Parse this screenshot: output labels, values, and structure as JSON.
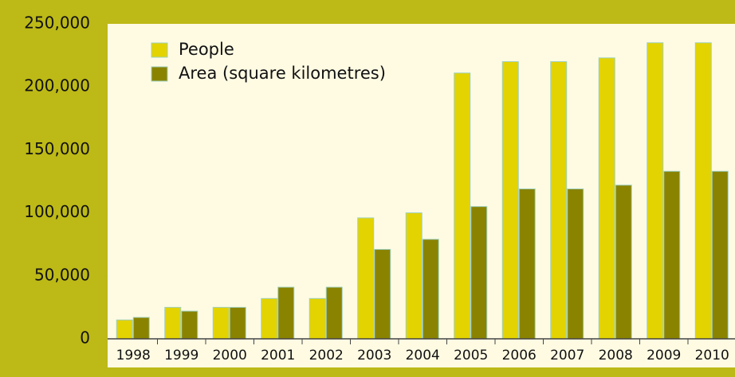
{
  "chart_data": {
    "type": "bar",
    "categories": [
      "1998",
      "1999",
      "2000",
      "2001",
      "2002",
      "2003",
      "2004",
      "2005",
      "2006",
      "2007",
      "2008",
      "2009",
      "2010"
    ],
    "series": [
      {
        "name": "People",
        "color": "#e3d300",
        "values": [
          15000,
          25000,
          25000,
          32000,
          32000,
          96000,
          100000,
          211000,
          220000,
          220000,
          223000,
          235000,
          235000
        ]
      },
      {
        "name": "Area (square kilometres)",
        "color": "#8a8300",
        "values": [
          17000,
          22000,
          25000,
          41000,
          41000,
          71000,
          79000,
          105000,
          119000,
          119000,
          122000,
          133000,
          133000
        ]
      }
    ],
    "ylim": [
      0,
      250000
    ],
    "yticks": [
      0,
      {
        "value": 50000,
        "label": "50,000"
      },
      {
        "value": 100000,
        "label": "100,000"
      },
      {
        "value": 150000,
        "label": "150,000"
      },
      {
        "value": 200000,
        "label": "200,000"
      },
      {
        "value": 250000,
        "label": "250,000"
      }
    ],
    "grid": false,
    "legend": "upper left"
  }
}
